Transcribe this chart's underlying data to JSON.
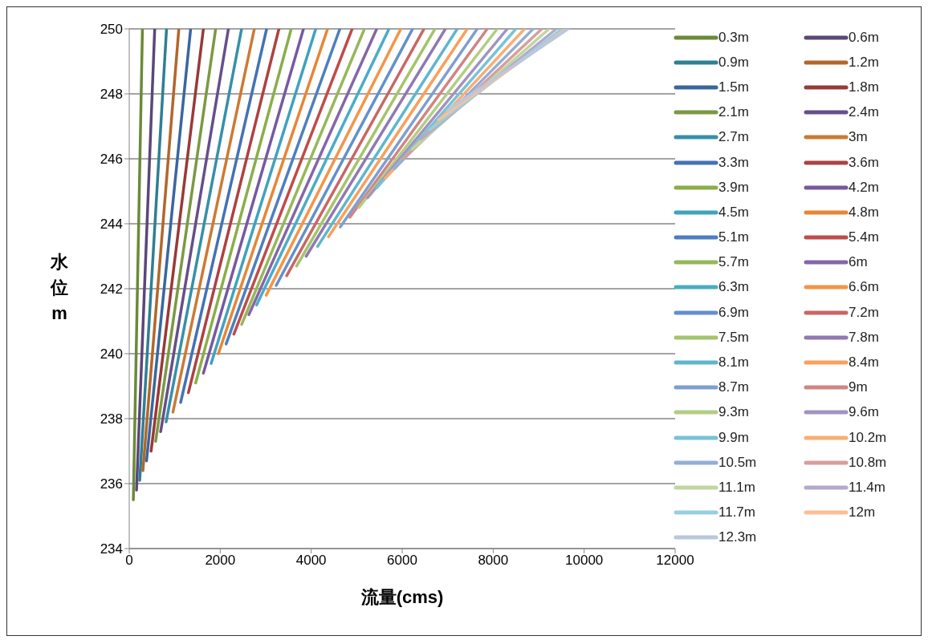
{
  "chart_data": {
    "type": "line",
    "xlabel": "流量(cms)",
    "ylabel": "水位m",
    "xlim": [
      0,
      12000
    ],
    "xticks": [
      0,
      2000,
      4000,
      6000,
      8000,
      10000,
      12000
    ],
    "ylim": [
      234,
      250
    ],
    "yticks": [
      234,
      236,
      238,
      240,
      242,
      244,
      246,
      248,
      250
    ],
    "grid": "y",
    "legend": "right",
    "marker": "none",
    "line_style": "solid",
    "series": [
      {
        "name": "0.3m",
        "color": "#6b8a38",
        "x": [
          90,
          290
        ],
        "values": [
          235.5,
          250
        ]
      },
      {
        "name": "0.6m",
        "color": "#5b477a",
        "x": [
          160,
          560
        ],
        "values": [
          235.8,
          250
        ]
      },
      {
        "name": "0.9m",
        "color": "#2f7f93",
        "x": [
          230,
          820
        ],
        "values": [
          236.1,
          250
        ]
      },
      {
        "name": "1.2m",
        "color": "#b2672b",
        "x": [
          300,
          1090
        ],
        "values": [
          236.4,
          250
        ]
      },
      {
        "name": "1.5m",
        "color": "#3a66a0",
        "x": [
          380,
          1350
        ],
        "values": [
          236.7,
          250
        ]
      },
      {
        "name": "1.8m",
        "color": "#983a37",
        "x": [
          480,
          1630
        ],
        "values": [
          237,
          250
        ]
      },
      {
        "name": "2.1m",
        "color": "#7a9a42",
        "x": [
          580,
          1900
        ],
        "values": [
          237.3,
          250
        ]
      },
      {
        "name": "2.4m",
        "color": "#664f8a",
        "x": [
          690,
          2180
        ],
        "values": [
          237.6,
          250
        ]
      },
      {
        "name": "2.7m",
        "color": "#3690a8",
        "x": [
          810,
          2470
        ],
        "values": [
          237.9,
          250
        ]
      },
      {
        "name": "3m",
        "color": "#cc7a34",
        "x": [
          960,
          2750
        ],
        "values": [
          238.2,
          250
        ]
      },
      {
        "name": "3.3m",
        "color": "#4472b4",
        "x": [
          1130,
          3020
        ],
        "values": [
          238.5,
          250
        ]
      },
      {
        "name": "3.6m",
        "color": "#ad4240",
        "x": [
          1300,
          3290
        ],
        "values": [
          238.8,
          250
        ]
      },
      {
        "name": "3.9m",
        "color": "#8aae4a",
        "x": [
          1460,
          3560
        ],
        "values": [
          239.1,
          250
        ]
      },
      {
        "name": "4.2m",
        "color": "#7659a0",
        "x": [
          1630,
          3830
        ],
        "values": [
          239.4,
          250
        ]
      },
      {
        "name": "4.5m",
        "color": "#40a2bd",
        "x": [
          1800,
          4100
        ],
        "values": [
          239.7,
          250
        ]
      },
      {
        "name": "4.8m",
        "color": "#e68637",
        "x": [
          1960,
          4360
        ],
        "values": [
          240,
          250
        ]
      },
      {
        "name": "5.1m",
        "color": "#4d7fc0",
        "x": [
          2130,
          4630
        ],
        "values": [
          240.3,
          250
        ]
      },
      {
        "name": "5.4m",
        "color": "#bf4c49",
        "x": [
          2300,
          4900
        ],
        "values": [
          240.6,
          250
        ]
      },
      {
        "name": "5.7m",
        "color": "#96b85a",
        "x": [
          2470,
          5170
        ],
        "values": [
          240.9,
          250
        ]
      },
      {
        "name": "6m",
        "color": "#8566a8",
        "x": [
          2630,
          5440
        ],
        "values": [
          241.2,
          250
        ]
      },
      {
        "name": "6.3m",
        "color": "#4bacc6",
        "x": [
          2800,
          5710
        ],
        "values": [
          241.5,
          250
        ]
      },
      {
        "name": "6.6m",
        "color": "#f59447",
        "x": [
          3010,
          5970
        ],
        "values": [
          241.8,
          250
        ]
      },
      {
        "name": "6.9m",
        "color": "#6290cc",
        "x": [
          3230,
          6230
        ],
        "values": [
          242.1,
          250
        ]
      },
      {
        "name": "7.2m",
        "color": "#c96664",
        "x": [
          3460,
          6480
        ],
        "values": [
          242.4,
          250
        ]
      },
      {
        "name": "7.5m",
        "color": "#a4c46c",
        "x": [
          3680,
          6720
        ],
        "values": [
          242.7,
          250
        ]
      },
      {
        "name": "7.8m",
        "color": "#9079b2",
        "x": [
          3890,
          6950
        ],
        "values": [
          243,
          250
        ]
      },
      {
        "name": "8.1m",
        "color": "#5eb6ce",
        "x": [
          4140,
          7210
        ],
        "values": [
          243.3,
          250
        ]
      },
      {
        "name": "8.4m",
        "color": "#f8a05c",
        "x": [
          4380,
          7430
        ],
        "values": [
          243.6,
          250
        ]
      },
      {
        "name": "8.7m",
        "color": "#7d9fd1",
        "x": [
          4640,
          7650
        ],
        "values": [
          243.9,
          250
        ]
      },
      {
        "name": "9m",
        "color": "#d08583",
        "x": [
          4850,
          7870
        ],
        "values": [
          244.2,
          250
        ]
      },
      {
        "name": "9.3m",
        "color": "#b2cd85",
        "x": [
          5050,
          8090
        ],
        "values": [
          244.5,
          250
        ]
      },
      {
        "name": "9.6m",
        "color": "#a293c0",
        "x": [
          5240,
          8310
        ],
        "values": [
          244.8,
          250
        ]
      },
      {
        "name": "9.9m",
        "color": "#78c2d6",
        "x": [
          5440,
          8500
        ],
        "values": [
          245.1,
          250
        ]
      },
      {
        "name": "10.2m",
        "color": "#f9ad75",
        "x": [
          5630,
          8690
        ],
        "values": [
          245.4,
          250
        ]
      },
      {
        "name": "10.5m",
        "color": "#93aed6",
        "x": [
          5830,
          8880
        ],
        "values": [
          245.7,
          250
        ]
      },
      {
        "name": "10.8m",
        "color": "#d69f9d",
        "x": [
          6020,
          9070
        ],
        "values": [
          246,
          250
        ]
      },
      {
        "name": "11.1m",
        "color": "#c0d69e",
        "x": [
          6220,
          9230
        ],
        "values": [
          246.3,
          250
        ]
      },
      {
        "name": "11.4m",
        "color": "#b3a9cb",
        "x": [
          6410,
          9390
        ],
        "values": [
          246.6,
          250
        ]
      },
      {
        "name": "11.7m",
        "color": "#98cfdf",
        "x": [
          6610,
          9510
        ],
        "values": [
          246.9,
          250
        ]
      },
      {
        "name": "12m",
        "color": "#fabf96",
        "x": [
          6800,
          9610
        ],
        "values": [
          247.2,
          250
        ]
      },
      {
        "name": "12.3m",
        "color": "#b9c7e0",
        "x": [
          7000,
          9650
        ],
        "values": [
          247.5,
          250
        ]
      }
    ]
  }
}
